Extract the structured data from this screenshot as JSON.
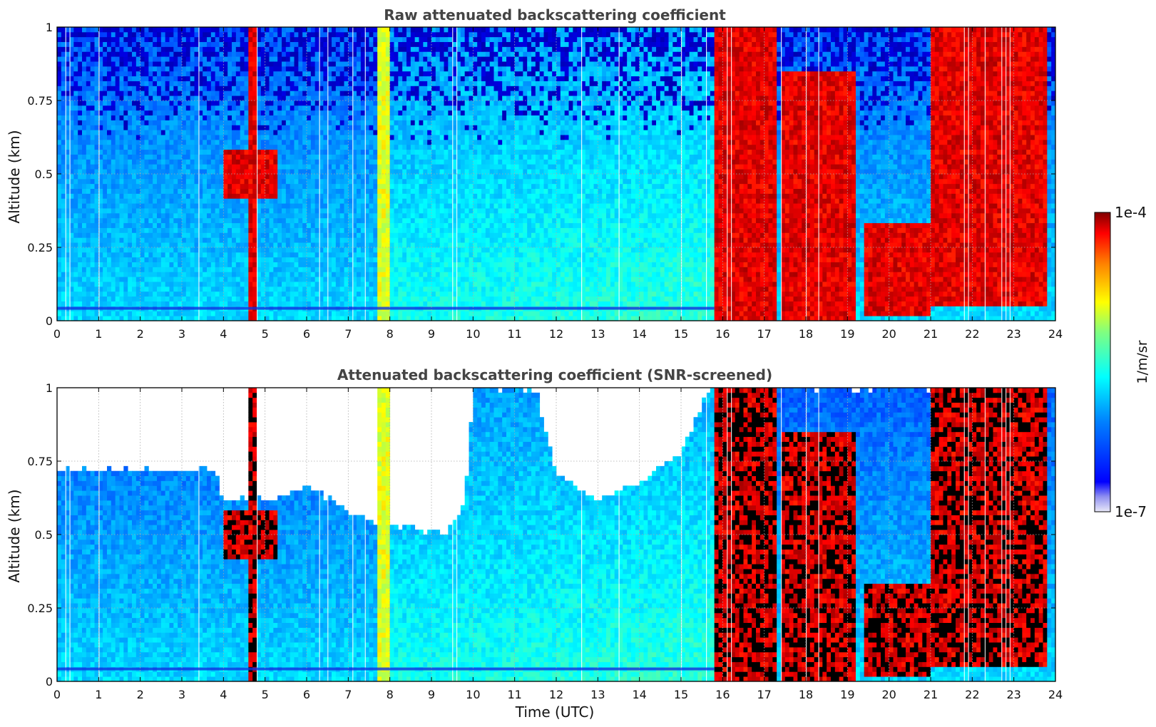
{
  "chart_data": [
    {
      "type": "heatmap",
      "title": "Raw attenuated backscattering coefficient",
      "xlabel": "",
      "ylabel": "Altitude (km)",
      "xlim": [
        0,
        24
      ],
      "ylim": [
        0,
        1
      ],
      "x_ticks": [
        "0",
        "1",
        "2",
        "3",
        "4",
        "5",
        "6",
        "7",
        "8",
        "9",
        "10",
        "11",
        "12",
        "13",
        "14",
        "15",
        "16",
        "17",
        "18",
        "19",
        "20",
        "21",
        "22",
        "23",
        "24"
      ],
      "y_ticks": [
        "0",
        "0.25",
        "0.5",
        "0.75",
        "1"
      ],
      "grid": true,
      "colormap": "jet",
      "screened": false,
      "features": [
        {
          "time_range": [
            4.0,
            5.3
          ],
          "altitude_range": [
            0.42,
            0.58
          ],
          "level": "high"
        },
        {
          "time_range": [
            4.65,
            4.75
          ],
          "altitude_range": [
            0,
            1
          ],
          "level": "high"
        },
        {
          "time_range": [
            7.75,
            7.95
          ],
          "altitude_range": [
            0,
            1
          ],
          "level": "mid"
        },
        {
          "time_range": [
            15.8,
            17.3
          ],
          "altitude_range": [
            0,
            1
          ],
          "level": "high"
        },
        {
          "time_range": [
            17.4,
            19.2
          ],
          "altitude_range": [
            0,
            0.85
          ],
          "level": "high"
        },
        {
          "time_range": [
            19.4,
            21.0
          ],
          "altitude_range": [
            0.02,
            0.33
          ],
          "level": "high"
        },
        {
          "time_range": [
            21.0,
            23.8
          ],
          "altitude_range": [
            0.05,
            1
          ],
          "level": "high"
        }
      ]
    },
    {
      "type": "heatmap",
      "title": "Attenuated backscattering coefficient (SNR-screened)",
      "xlabel": "Time (UTC)",
      "ylabel": "Altitude (km)",
      "xlim": [
        0,
        24
      ],
      "ylim": [
        0,
        1
      ],
      "x_ticks": [
        "0",
        "1",
        "2",
        "3",
        "4",
        "5",
        "6",
        "7",
        "8",
        "9",
        "10",
        "11",
        "12",
        "13",
        "14",
        "15",
        "16",
        "17",
        "18",
        "19",
        "20",
        "21",
        "22",
        "23",
        "24"
      ],
      "y_ticks": [
        "0",
        "0.25",
        "0.5",
        "0.75",
        "1"
      ],
      "grid": true,
      "colormap": "jet",
      "screened": true,
      "signal_top_km": [
        [
          0,
          0.72
        ],
        [
          3.8,
          0.72
        ],
        [
          4.0,
          0.62
        ],
        [
          5.2,
          0.62
        ],
        [
          6.0,
          0.67
        ],
        [
          7.0,
          0.58
        ],
        [
          7.5,
          0.55
        ],
        [
          8.5,
          0.52
        ],
        [
          9.3,
          0.5
        ],
        [
          9.8,
          0.6
        ],
        [
          10.0,
          1.0
        ],
        [
          11.5,
          1.0
        ],
        [
          12.0,
          0.7
        ],
        [
          13.0,
          0.62
        ],
        [
          14.0,
          0.68
        ],
        [
          15.0,
          0.78
        ],
        [
          15.7,
          1.0
        ],
        [
          24,
          1.0
        ]
      ]
    }
  ],
  "colorbar": {
    "max_label": "1e-4",
    "min_label": "1e-7",
    "label": "1/m/sr",
    "scale": "log"
  }
}
